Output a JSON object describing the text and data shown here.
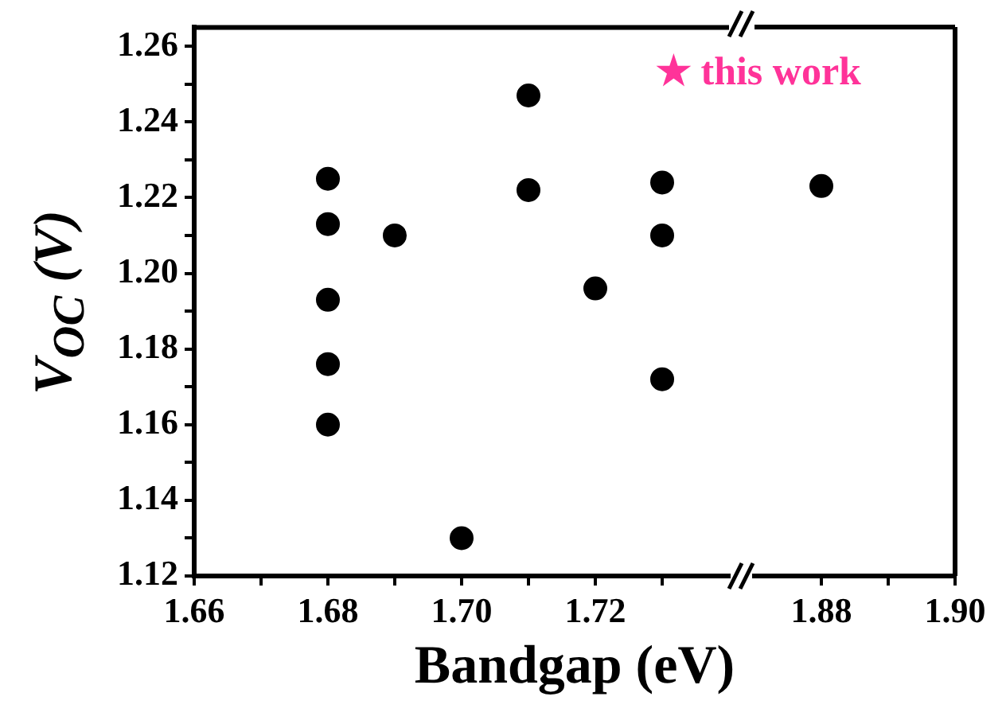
{
  "chart_data": [
    {
      "type": "scatter",
      "xlabel": "Bandgap  (eV)",
      "ylabel": "V$_{OC}$ (V)",
      "annotations": [
        "★ this work"
      ],
      "x": [
        1.68,
        1.68,
        1.68,
        1.68,
        1.68,
        1.69,
        1.7,
        1.71,
        1.71,
        1.72,
        1.73,
        1.73,
        1.73
      ],
      "series": [
        {
          "color": "#000000",
          "values": [
            1.225,
            1.213,
            1.193,
            1.176,
            1.16,
            1.21,
            1.13,
            1.247,
            1.222,
            1.196,
            1.224,
            1.21,
            1.172
          ]
        }
      ],
      "xlim": [
        1.66,
        1.74
      ],
      "xticks": [
        1.66,
        {
          "value": 1.67,
          "label": null
        },
        1.68,
        {
          "value": 1.69,
          "label": null
        },
        {
          "value": 1.7,
          "label": "1.70"
        },
        {
          "value": 1.71,
          "label": null
        },
        1.72,
        {
          "value": 1.73,
          "label": null
        }
      ],
      "ylim": [
        1.12,
        1.265
      ],
      "yticks": [
        1.12,
        {
          "value": 1.13,
          "label": null
        },
        1.14,
        {
          "value": 1.15,
          "label": null
        },
        1.16,
        {
          "value": 1.17,
          "label": null
        },
        1.18,
        {
          "value": 1.19,
          "label": null
        },
        {
          "value": 1.2,
          "label": "1.20"
        },
        {
          "value": 1.21,
          "label": null
        },
        1.22,
        {
          "value": 1.23,
          "label": null
        },
        1.24,
        {
          "value": 1.25,
          "label": null
        },
        1.26
      ],
      "marker": "circle",
      "grid": false,
      "legend": false
    },
    {
      "type": "scatter",
      "x": [
        1.88
      ],
      "series": [
        {
          "color": "#000000",
          "values": [
            1.223
          ]
        }
      ],
      "xlim": [
        1.87,
        1.9
      ],
      "xticks": [
        1.88,
        {
          "value": 1.89,
          "label": null
        },
        {
          "value": 1.9,
          "label": "1.90"
        }
      ],
      "ylim": [
        1.12,
        1.265
      ],
      "tick_labels": "x",
      "marker": "circle",
      "grid": false,
      "legend": false
    }
  ]
}
